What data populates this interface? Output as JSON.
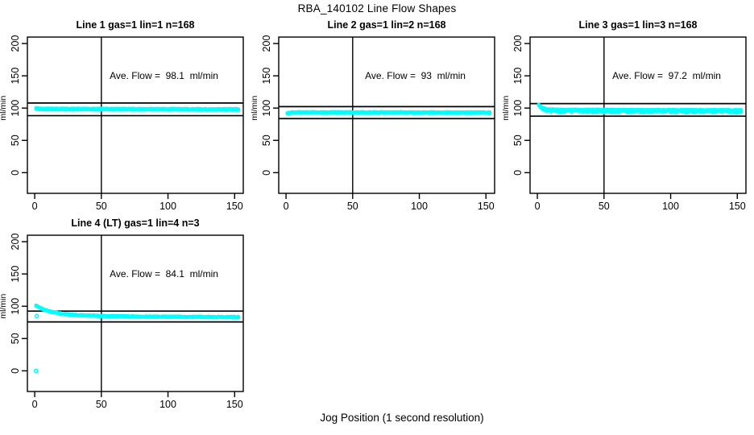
{
  "figure": {
    "title": "RBA_140102  Line Flow Shapes",
    "xlabel": "Jog Position (1 second resolution)",
    "ylabel": "ml/min",
    "background_color": "#ffffff",
    "point_color": "#00ffff",
    "line_color": "#000000"
  },
  "axes": {
    "xlim": [
      -5.5,
      156.5
    ],
    "ylim": [
      -32,
      210
    ],
    "x_ticks": [
      0,
      50,
      100,
      150
    ],
    "y_ticks": [
      0,
      50,
      100,
      150,
      200
    ],
    "vline_x": 50
  },
  "chart_data": [
    {
      "type": "scatter",
      "marker": "open-circle",
      "title": "Line 1 gas=1 lin=1 n=168",
      "annotation": "Ave. Flow =  98.1  ml/min",
      "ave_flow_ml_min": 98.1,
      "n_jogs": 168,
      "hlines": [
        107.9,
        88.3
      ],
      "band_profile": [
        [
          1,
          99.3
        ],
        [
          4,
          98.6
        ],
        [
          151,
          98.0
        ]
      ],
      "band_halfwidth": 1.0,
      "layers": 3,
      "x_step": 0.6,
      "x_range": [
        1,
        153
      ],
      "extra_points": []
    },
    {
      "type": "scatter",
      "marker": "open-circle",
      "title": "Line 2 gas=1 lin=2 n=168",
      "annotation": "Ave. Flow =  93  ml/min",
      "ave_flow_ml_min": 93,
      "n_jogs": 168,
      "hlines": [
        102.3,
        83.7
      ],
      "band_profile": [
        [
          1,
          92.0
        ],
        [
          4,
          93.2
        ],
        [
          151,
          93.0
        ]
      ],
      "band_halfwidth": 1.0,
      "layers": 3,
      "x_step": 0.6,
      "x_range": [
        1,
        153
      ],
      "extra_points": []
    },
    {
      "type": "scatter",
      "marker": "open-circle",
      "title": "Line 3 gas=1 lin=3 n=168",
      "annotation": "Ave. Flow =  97.2  ml/min",
      "ave_flow_ml_min": 97.2,
      "n_jogs": 168,
      "hlines": [
        106.9,
        87.5
      ],
      "band_profile": [
        [
          1,
          105.5
        ],
        [
          3,
          100.5
        ],
        [
          7,
          97.8
        ],
        [
          15,
          97.0
        ],
        [
          151,
          96.4
        ]
      ],
      "band_halfwidth": 1.1,
      "layers": 3,
      "x_step": 0.6,
      "x_range": [
        1,
        153
      ],
      "downspikes": {
        "probability": 0.22,
        "depth": 3.0
      },
      "extra_points": []
    },
    {
      "type": "scatter",
      "marker": "open-circle",
      "title": "Line 4 (LT) gas=1 lin=4 n=3",
      "annotation": "Ave. Flow =  84.1  ml/min",
      "ave_flow_ml_min": 84.1,
      "n_jogs": 3,
      "hlines": [
        92.5,
        75.7
      ],
      "band_profile": [
        [
          1,
          101.0
        ],
        [
          6,
          95.5
        ],
        [
          12,
          91.5
        ],
        [
          20,
          88.5
        ],
        [
          32,
          86.3
        ],
        [
          50,
          85.0
        ],
        [
          80,
          84.0
        ],
        [
          151,
          83.2
        ]
      ],
      "band_halfwidth": 0.8,
      "layers": 2,
      "x_step": 0.6,
      "x_range": [
        1,
        153
      ],
      "extra_points": [
        [
          1,
          0
        ],
        [
          1.5,
          85
        ]
      ]
    }
  ]
}
